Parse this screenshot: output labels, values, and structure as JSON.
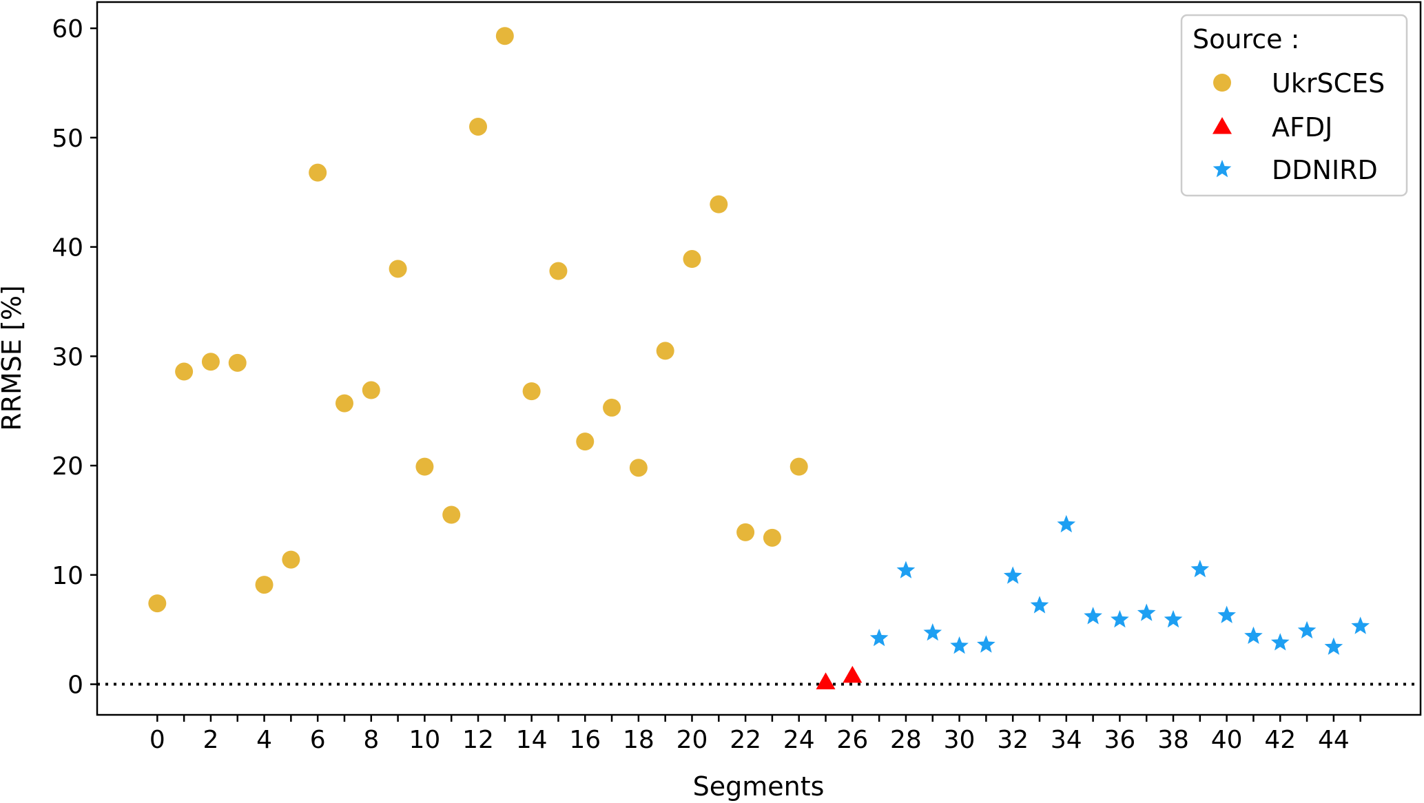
{
  "chart_data": {
    "type": "scatter",
    "title": "",
    "xlabel": "Segments",
    "ylabel": "RRMSE [%]",
    "xlim": [
      -2.25,
      47.25
    ],
    "ylim": [
      -2.8,
      62.4
    ],
    "x_ticks": [
      0,
      2,
      4,
      6,
      8,
      10,
      12,
      14,
      16,
      18,
      20,
      22,
      24,
      26,
      28,
      30,
      32,
      34,
      36,
      38,
      40,
      42,
      44
    ],
    "x_minor_ticks": [
      1,
      3,
      5,
      7,
      9,
      11,
      13,
      15,
      17,
      19,
      21,
      23,
      25,
      27,
      29,
      31,
      33,
      35,
      37,
      39,
      41,
      43,
      45
    ],
    "y_ticks": [
      0,
      10,
      20,
      30,
      40,
      50,
      60
    ],
    "grid": false,
    "reference_line": {
      "y": 0,
      "style": "dotted",
      "color": "#000000"
    },
    "legend": {
      "title": "Source :",
      "placement": "top-right"
    },
    "series": [
      {
        "name": "UkrSCES",
        "marker": "circle",
        "color": "#E6B63A",
        "x": [
          0,
          1,
          2,
          3,
          4,
          5,
          6,
          7,
          8,
          9,
          10,
          11,
          12,
          13,
          14,
          15,
          16,
          17,
          18,
          19,
          20,
          21,
          22,
          23,
          24
        ],
        "y": [
          7.4,
          28.6,
          29.5,
          29.4,
          9.1,
          11.4,
          46.8,
          25.7,
          26.9,
          38.0,
          19.9,
          15.5,
          51.0,
          59.3,
          26.8,
          37.8,
          22.2,
          25.3,
          19.8,
          30.5,
          38.9,
          43.9,
          13.9,
          13.4,
          19.9
        ]
      },
      {
        "name": "AFDJ",
        "marker": "triangle",
        "color": "#FF0000",
        "x": [
          25,
          26
        ],
        "y": [
          0.2,
          0.8
        ]
      },
      {
        "name": "DDNIRD",
        "marker": "star",
        "color": "#1E9FF2",
        "x": [
          27,
          28,
          29,
          30,
          31,
          32,
          33,
          34,
          35,
          36,
          37,
          38,
          39,
          40,
          41,
          42,
          43,
          44,
          45
        ],
        "y": [
          4.2,
          10.4,
          4.7,
          3.5,
          3.6,
          9.9,
          7.2,
          14.6,
          6.2,
          5.9,
          6.5,
          5.9,
          10.5,
          6.3,
          4.4,
          3.8,
          4.9,
          3.4,
          5.3
        ]
      }
    ]
  }
}
